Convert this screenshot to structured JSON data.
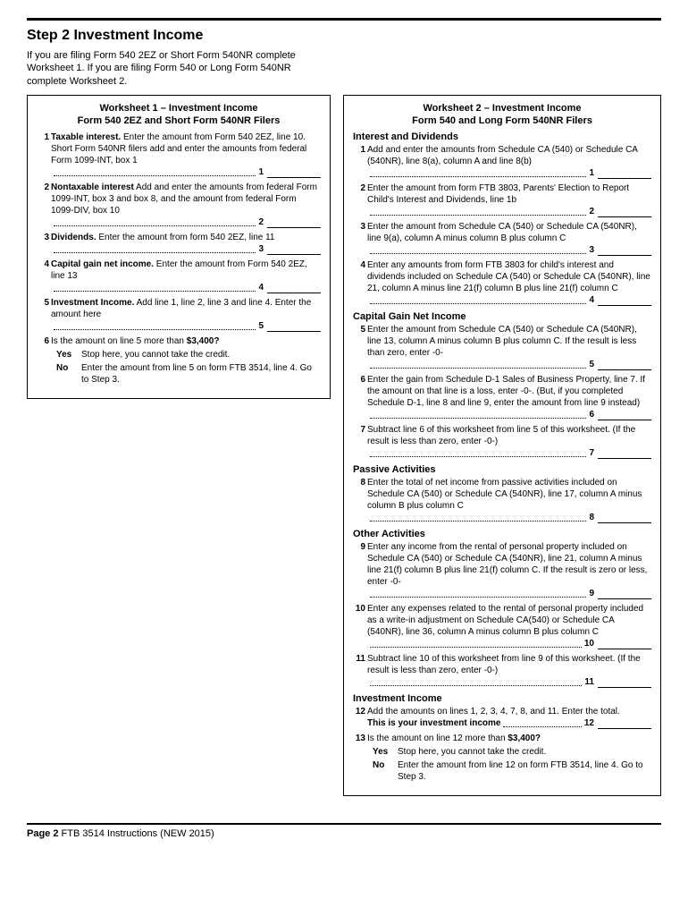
{
  "step_title": "Step 2  Investment Income",
  "intro": "If you are filing Form 540 2EZ or Short Form 540NR complete Worksheet 1. If you are filing Form 540 or Long Form 540NR complete Worksheet 2.",
  "ws1": {
    "title": "Worksheet 1 – Investment Income",
    "subtitle": "Form 540 2EZ and Short Form 540NR Filers",
    "l1_label": "Taxable interest.",
    "l1_text": " Enter the amount from Form 540 2EZ, line 10. Short Form 540NR filers add and enter the amounts from federal Form 1099-INT, box 1",
    "l1_num": "1",
    "l2_label": "Nontaxable interest",
    "l2_text": " Add and enter the amounts from federal Form 1099-INT, box 3 and box 8, and the amount from federal Form 1099-DIV, box 10",
    "l2_num": "2",
    "l3_label": "Dividends.",
    "l3_text": " Enter the amount from form 540 2EZ, line 11",
    "l3_num": "3",
    "l4_label": "Capital gain net income.",
    "l4_text": " Enter the amount from Form 540 2EZ, line 13",
    "l4_num": "4",
    "l5_label": "Investment Income.",
    "l5_text": " Add line 1, line 2, line 3 and line 4. Enter the amount here",
    "l5_num": "5",
    "l6_q": "Is the amount on line 5 more than ",
    "l6_amt": "$3,400?",
    "yes_label": "Yes",
    "yes_text": "Stop here, you cannot take the credit.",
    "no_label": "No",
    "no_text": "Enter the amount from line 5 on form FTB 3514, line 4. Go to Step 3."
  },
  "ws2": {
    "title": "Worksheet 2 – Investment Income",
    "subtitle": "Form 540 and Long Form 540NR Filers",
    "sec_int": "Interest and Dividends",
    "l1": "Add and enter the amounts from Schedule CA (540) or Schedule CA (540NR), line 8(a), column A and line 8(b)",
    "l1n": "1",
    "l2": "Enter the amount from form FTB 3803, Parents' Election to Report Child's Interest and Dividends, line 1b",
    "l2n": "2",
    "l3": "Enter the amount from Schedule CA (540) or Schedule CA (540NR), line 9(a), column A minus column B plus column C",
    "l3n": "3",
    "l4": "Enter any amounts from form FTB 3803 for child's interest and dividends included on Schedule CA (540) or Schedule CA (540NR), line 21, column A minus line 21(f) column B plus line 21(f) column C",
    "l4n": "4",
    "sec_cap": "Capital Gain Net Income",
    "l5": "Enter the amount from Schedule CA (540) or Schedule CA (540NR), line 13, column A minus column B plus column C. If the result is less than zero, enter  -0-",
    "l5n": "5",
    "l6": "Enter the gain from Schedule D-1 Sales of Business Property, line 7. If the amount on that line is a loss, enter -0-. (But, if you completed Schedule D-1, line 8 and line 9, enter the amount from line 9 instead)",
    "l6n": "6",
    "l7": "Subtract line 6 of this worksheet from line 5 of this worksheet. (If the result is less than zero, enter -0-)",
    "l7n": "7",
    "sec_pas": "Passive Activities",
    "l8": "Enter the total of net income from passive activities included on Schedule CA (540) or Schedule CA (540NR), line 17, column A minus column B plus column C",
    "l8n": "8",
    "sec_oth": "Other Activities",
    "l9": "Enter any income from the rental of personal property included on Schedule CA (540) or Schedule CA (540NR), line 21, column A minus line 21(f) column B plus line 21(f) column C. If the result is zero or less, enter -0-",
    "l9n": "9",
    "l10": "Enter any expenses related to the rental of personal property included as a write-in adjustment on Schedule CA(540) or Schedule CA (540NR), line 36, column A minus column B plus column C",
    "l10n": "10",
    "l11": "Subtract line 10 of this worksheet from line 9 of this worksheet. (If the result is less than zero, enter -0-)",
    "l11n": "11",
    "sec_inv": "Investment Income",
    "l12a": "Add the amounts on lines 1, 2, 3, 4, 7, 8, and 11. Enter the total.",
    "l12b": "This is your investment income",
    "l12n": "12",
    "l13_q": "Is the amount on line 12 more than ",
    "l13_amt": "$3,400?",
    "yes_label": "Yes",
    "yes_text": "Stop here, you cannot take the credit.",
    "no_label": "No",
    "no_text": "Enter the amount from line 12 on form FTB 3514, line 4. Go to Step 3."
  },
  "footer_page": "Page 2",
  "footer_text": "  FTB 3514 Instructions  (NEW 2015)"
}
